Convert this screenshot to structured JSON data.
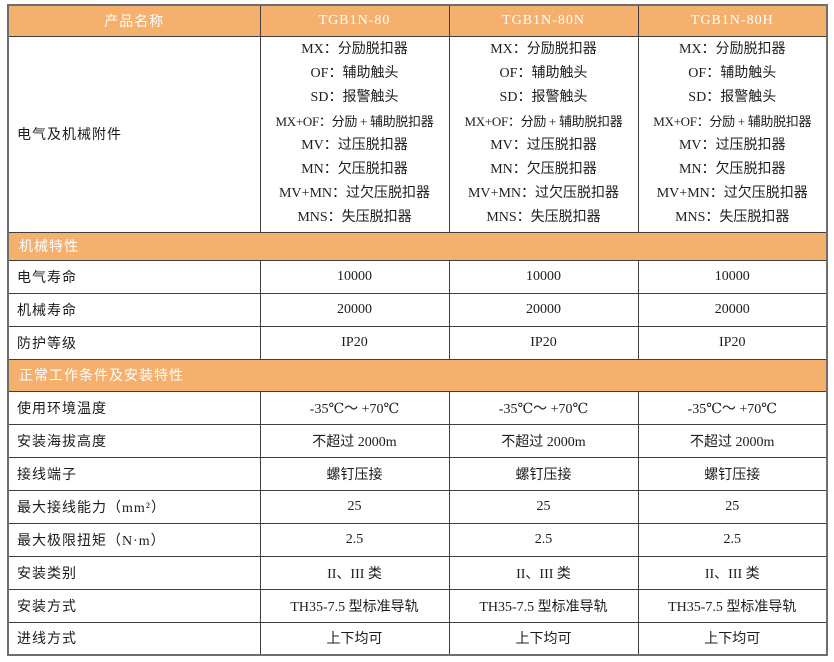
{
  "colors": {
    "header_bg": "#F5B06E",
    "header_text": "#FFFFFF",
    "inner_border": "#3F3F3F",
    "outer_border": "#6E6E6E",
    "body_text": "#1C1C1C"
  },
  "table": {
    "header": {
      "product_name_label": "产品名称",
      "columns": [
        "TGB1N-80",
        "TGB1N-80N",
        "TGB1N-80H"
      ]
    },
    "accessories_row": {
      "label": "电气及机械附件",
      "lines": [
        "MX：分励脱扣器",
        "OF：辅助触头",
        "SD：报警触头",
        "MX+OF：分励 + 辅助脱扣器",
        "MV：过压脱扣器",
        "MN：欠压脱扣器",
        "MV+MN：过欠压脱扣器",
        "MNS：失压脱扣器"
      ]
    },
    "sections": [
      {
        "title": "机械特性",
        "rows": [
          {
            "label": "电气寿命",
            "values": [
              "10000",
              "10000",
              "10000"
            ]
          },
          {
            "label": "机械寿命",
            "values": [
              "20000",
              "20000",
              "20000"
            ]
          },
          {
            "label": "防护等级",
            "values": [
              "IP20",
              "IP20",
              "IP20"
            ]
          }
        ]
      },
      {
        "title": "正常工作条件及安装特性",
        "rows": [
          {
            "label": "使用环境温度",
            "values": [
              "-35℃～ +70℃",
              "-35℃～ +70℃",
              "-35℃～ +70℃"
            ]
          },
          {
            "label": "安装海拔高度",
            "values": [
              "不超过 2000m",
              "不超过 2000m",
              "不超过 2000m"
            ]
          },
          {
            "label": "接线端子",
            "values": [
              "螺钉压接",
              "螺钉压接",
              "螺钉压接"
            ]
          },
          {
            "label": "最大接线能力（mm²）",
            "values": [
              "25",
              "25",
              "25"
            ]
          },
          {
            "label": "最大极限扭矩（N·m）",
            "values": [
              "2.5",
              "2.5",
              "2.5"
            ]
          },
          {
            "label": "安装类别",
            "values": [
              "II、III 类",
              "II、III 类",
              "II、III 类"
            ]
          },
          {
            "label": "安装方式",
            "values": [
              "TH35-7.5 型标准导轨",
              "TH35-7.5 型标准导轨",
              "TH35-7.5 型标准导轨"
            ]
          },
          {
            "label": "进线方式",
            "values": [
              "上下均可",
              "上下均可",
              "上下均可"
            ]
          }
        ]
      }
    ]
  }
}
